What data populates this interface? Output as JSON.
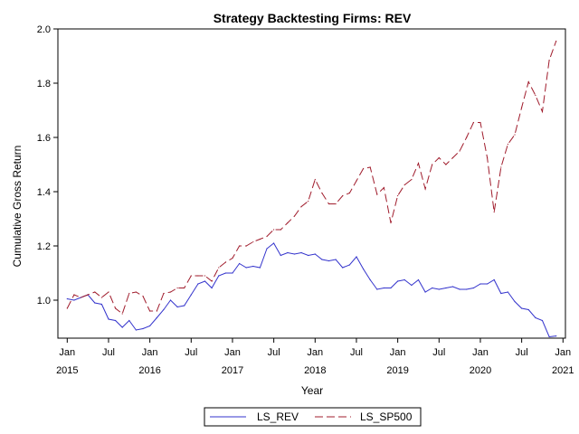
{
  "chart_data": {
    "type": "line",
    "title": "Strategy Backtesting  Firms: REV",
    "xlabel": "Year",
    "ylabel": "Cumulative Gross Return",
    "ylim": [
      0.86,
      2.0
    ],
    "yticks": [
      1.0,
      1.2,
      1.4,
      1.6,
      1.8,
      2.0
    ],
    "ytick_labels": [
      "1.0",
      "1.2",
      "1.4",
      "1.6",
      "1.8",
      "2.0"
    ],
    "xlim": [
      "2014-12",
      "2021-01"
    ],
    "xticks": [
      {
        "date": "2015-01",
        "month": "Jan",
        "year": "2015"
      },
      {
        "date": "2015-07",
        "month": "Jul",
        "year": ""
      },
      {
        "date": "2016-01",
        "month": "Jan",
        "year": "2016"
      },
      {
        "date": "2016-07",
        "month": "Jul",
        "year": ""
      },
      {
        "date": "2017-01",
        "month": "Jan",
        "year": "2017"
      },
      {
        "date": "2017-07",
        "month": "Jul",
        "year": ""
      },
      {
        "date": "2018-01",
        "month": "Jan",
        "year": "2018"
      },
      {
        "date": "2018-07",
        "month": "Jul",
        "year": ""
      },
      {
        "date": "2019-01",
        "month": "Jan",
        "year": "2019"
      },
      {
        "date": "2019-07",
        "month": "Jul",
        "year": ""
      },
      {
        "date": "2020-01",
        "month": "Jan",
        "year": "2020"
      },
      {
        "date": "2020-07",
        "month": "Jul",
        "year": ""
      },
      {
        "date": "2021-01",
        "month": "Jan",
        "year": "2021"
      }
    ],
    "grid": false,
    "legend_position": "bottom",
    "x": [
      "2015-01",
      "2015-02",
      "2015-03",
      "2015-04",
      "2015-05",
      "2015-06",
      "2015-07",
      "2015-08",
      "2015-09",
      "2015-10",
      "2015-11",
      "2015-12",
      "2016-01",
      "2016-02",
      "2016-03",
      "2016-04",
      "2016-05",
      "2016-06",
      "2016-07",
      "2016-08",
      "2016-09",
      "2016-10",
      "2016-11",
      "2016-12",
      "2017-01",
      "2017-02",
      "2017-03",
      "2017-04",
      "2017-05",
      "2017-06",
      "2017-07",
      "2017-08",
      "2017-09",
      "2017-10",
      "2017-11",
      "2017-12",
      "2018-01",
      "2018-02",
      "2018-03",
      "2018-04",
      "2018-05",
      "2018-06",
      "2018-07",
      "2018-08",
      "2018-09",
      "2018-10",
      "2018-11",
      "2018-12",
      "2019-01",
      "2019-02",
      "2019-03",
      "2019-04",
      "2019-05",
      "2019-06",
      "2019-07",
      "2019-08",
      "2019-09",
      "2019-10",
      "2019-11",
      "2019-12",
      "2020-01",
      "2020-02",
      "2020-03",
      "2020-04",
      "2020-05",
      "2020-06",
      "2020-07",
      "2020-08",
      "2020-09",
      "2020-10",
      "2020-11",
      "2020-12"
    ],
    "series": [
      {
        "name": "LS_REV",
        "color": "#3333cc",
        "dash": "solid",
        "values": [
          1.005,
          1.0,
          1.01,
          1.02,
          0.99,
          0.985,
          0.93,
          0.925,
          0.9,
          0.925,
          0.89,
          0.895,
          0.905,
          0.935,
          0.965,
          1.0,
          0.975,
          0.98,
          1.02,
          1.06,
          1.07,
          1.045,
          1.09,
          1.1,
          1.1,
          1.135,
          1.12,
          1.125,
          1.12,
          1.19,
          1.21,
          1.165,
          1.175,
          1.17,
          1.175,
          1.165,
          1.17,
          1.15,
          1.145,
          1.15,
          1.12,
          1.13,
          1.16,
          1.115,
          1.075,
          1.04,
          1.045,
          1.045,
          1.07,
          1.075,
          1.055,
          1.075,
          1.03,
          1.045,
          1.04,
          1.045,
          1.05,
          1.04,
          1.04,
          1.045,
          1.06,
          1.06,
          1.075,
          1.025,
          1.03,
          0.995,
          0.97,
          0.965,
          0.935,
          0.925,
          0.865,
          0.868
        ]
      },
      {
        "name": "LS_SP500",
        "color": "#a01c2c",
        "dash": "dashed",
        "values": [
          0.97,
          1.02,
          1.01,
          1.02,
          1.03,
          1.01,
          1.03,
          0.97,
          0.95,
          1.025,
          1.03,
          1.015,
          0.96,
          0.96,
          1.025,
          1.03,
          1.045,
          1.045,
          1.09,
          1.09,
          1.09,
          1.07,
          1.12,
          1.14,
          1.155,
          1.2,
          1.2,
          1.215,
          1.225,
          1.235,
          1.26,
          1.26,
          1.285,
          1.31,
          1.345,
          1.365,
          1.445,
          1.395,
          1.355,
          1.355,
          1.385,
          1.395,
          1.44,
          1.485,
          1.49,
          1.39,
          1.415,
          1.285,
          1.385,
          1.425,
          1.445,
          1.505,
          1.41,
          1.5,
          1.525,
          1.5,
          1.525,
          1.55,
          1.6,
          1.655,
          1.655,
          1.525,
          1.325,
          1.49,
          1.575,
          1.61,
          1.71,
          1.805,
          1.755,
          1.695,
          1.885,
          1.955
        ]
      }
    ]
  }
}
